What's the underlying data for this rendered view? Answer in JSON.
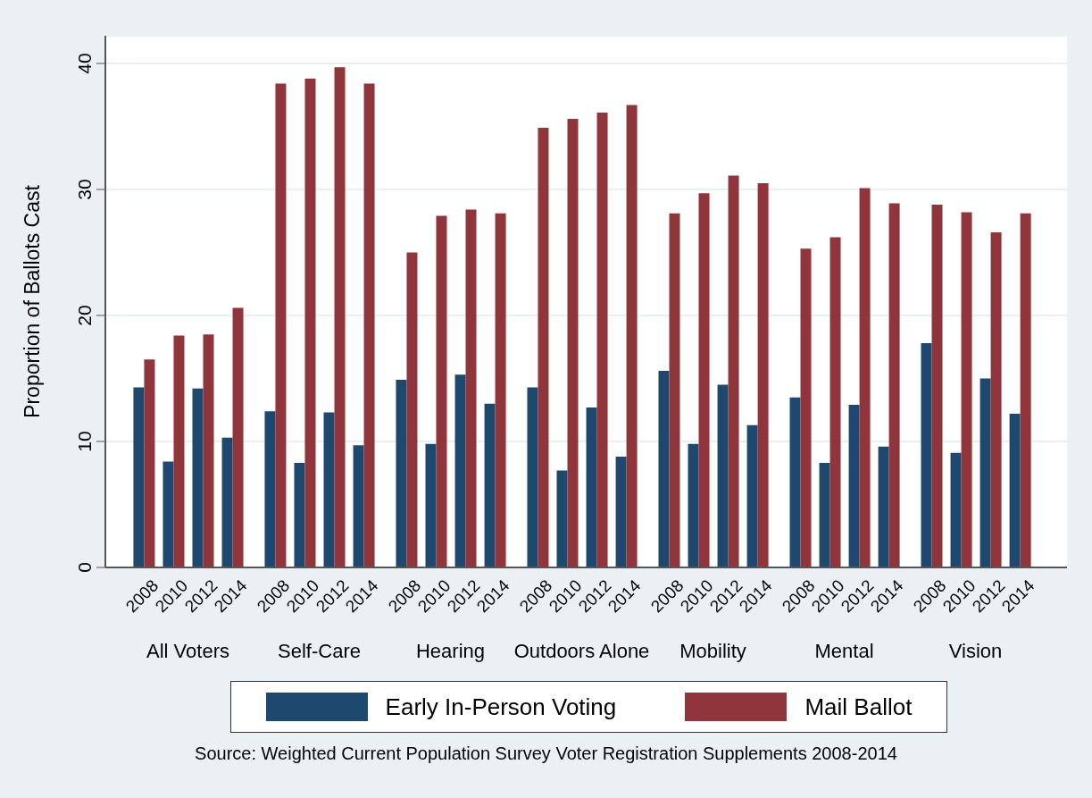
{
  "chart_data": {
    "type": "bar",
    "ylabel": "Proportion of Ballots Cast",
    "categories": [
      "2008",
      "2010",
      "2012",
      "2014",
      "2008",
      "2010",
      "2012",
      "2014",
      "2008",
      "2010",
      "2012",
      "2014",
      "2008",
      "2010",
      "2012",
      "2014",
      "2008",
      "2010",
      "2012",
      "2014",
      "2008",
      "2010",
      "2012",
      "2014",
      "2008",
      "2010",
      "2012",
      "2014"
    ],
    "series": [
      {
        "name": "Early In-Person Voting",
        "color": "#1f486e",
        "values": [
          14.3,
          8.4,
          14.2,
          10.3,
          12.4,
          8.3,
          12.3,
          9.7,
          14.9,
          9.8,
          15.3,
          13.0,
          14.3,
          7.7,
          12.7,
          8.8,
          15.6,
          9.8,
          14.5,
          11.3,
          13.5,
          8.3,
          12.9,
          9.6,
          17.8,
          9.1,
          15.0,
          12.2
        ]
      },
      {
        "name": "Mail Ballot",
        "color": "#90353b",
        "values": [
          16.5,
          18.4,
          18.5,
          20.6,
          38.4,
          38.8,
          39.7,
          38.4,
          25.0,
          27.9,
          28.4,
          28.1,
          34.9,
          35.6,
          36.1,
          36.7,
          28.1,
          29.7,
          31.1,
          30.5,
          25.3,
          26.2,
          30.1,
          28.9,
          28.8,
          28.2,
          26.6,
          28.1
        ]
      }
    ],
    "ylim": [
      0,
      42.2
    ],
    "yticks": [
      0,
      10,
      20,
      30,
      40
    ],
    "grid": "y",
    "legend": "bottom",
    "annotations": [
      "All Voters",
      "Self-Care",
      "Hearing",
      "Outdoors Alone",
      "Mobility",
      "Mental",
      "Vision",
      "Source: Weighted Current Population Survey Voter Registration Supplements 2008-2014"
    ]
  }
}
